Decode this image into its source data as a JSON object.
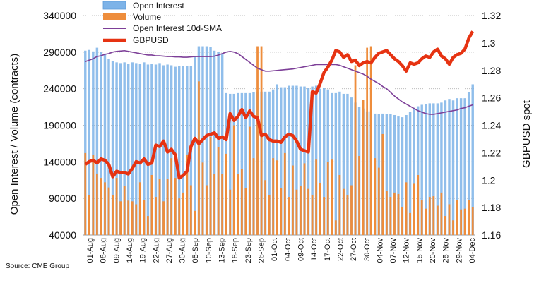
{
  "chart_data": {
    "type": "bar",
    "title": "",
    "ylabel": "Open Interest / Volume (contracts)",
    "y2label": "GBPUSD spot",
    "ylim": [
      40000,
      340000
    ],
    "y2lim": [
      1.16,
      1.32
    ],
    "yticks": [
      "340000",
      "290000",
      "240000",
      "190000",
      "140000",
      "90000",
      "40000"
    ],
    "y2ticks": [
      "1.32",
      "1.3",
      "1.28",
      "1.26",
      "1.24",
      "1.22",
      "1.2",
      "1.18",
      "1.16"
    ],
    "grid": "horizontal dotted",
    "legend_position": "top-left",
    "x_tick_labels": [
      "01-Aug",
      "06-Aug",
      "09-Aug",
      "14-Aug",
      "19-Aug",
      "22-Aug",
      "27-Aug",
      "30-Aug",
      "05-Sep",
      "10-Sep",
      "13-Sep",
      "18-Sep",
      "23-Sep",
      "26-Sep",
      "01-Oct",
      "04-Oct",
      "09-Oct",
      "14-Oct",
      "17-Oct",
      "22-Oct",
      "27-Oct",
      "30-Oct",
      "04-Nov",
      "07-Nov",
      "12-Nov",
      "15-Nov",
      "20-Nov",
      "25-Nov",
      "29-Nov",
      "04-Dec"
    ],
    "series": [
      {
        "name": "Open Interest",
        "kind": "bar",
        "axis": "left",
        "values": [
          292000,
          293000,
          291000,
          296000,
          290000,
          288000,
          281000,
          278000,
          276000,
          275000,
          276000,
          274000,
          276000,
          275000,
          274000,
          276000,
          273000,
          274000,
          273000,
          275000,
          272000,
          273000,
          272000,
          270000,
          271000,
          271000,
          271000,
          271000,
          284000,
          298000,
          298000,
          298000,
          297000,
          292000,
          290000,
          288000,
          234000,
          233000,
          233000,
          234000,
          234000,
          234000,
          234000,
          235000,
          236000,
          236000,
          236000,
          236000,
          239000,
          246000,
          242000,
          242000,
          244000,
          244000,
          244000,
          243000,
          243000,
          241000,
          243000,
          244000,
          240000,
          241000,
          239000,
          234000,
          234000,
          236000,
          233000,
          233000,
          228000,
          221000,
          215000,
          213000,
          209000,
          209000,
          206000,
          205000,
          206000,
          205000,
          205000,
          204000,
          202000,
          201000,
          204000,
          208000,
          214000,
          216000,
          218000,
          219000,
          220000,
          220000,
          220000,
          221000,
          224000,
          226000,
          224000,
          227000,
          227000,
          227000,
          235000,
          246000
        ]
      },
      {
        "name": "Volume",
        "kind": "bar",
        "axis": "left",
        "values": [
          152000,
          95000,
          150000,
          124000,
          118000,
          112000,
          105000,
          95000,
          118000,
          86000,
          107000,
          87000,
          86000,
          82000,
          112000,
          88000,
          66000,
          122000,
          92000,
          117000,
          86000,
          117000,
          145000,
          118000,
          90000,
          98000,
          150000,
          108000,
          73000,
          250000,
          139000,
          108000,
          174000,
          123000,
          160000,
          123000,
          151000,
          102000,
          190000,
          123000,
          130000,
          104000,
          188000,
          145000,
          298000,
          298000,
          115000,
          95000,
          145000,
          142000,
          104000,
          152000,
          92000,
          135000,
          102000,
          107000,
          138000,
          103000,
          95000,
          143000,
          111000,
          92000,
          140000,
          143000,
          60000,
          122000,
          103000,
          95000,
          108000,
          272000,
          148000,
          225000,
          296000,
          298000,
          145000,
          132000,
          178000,
          100000,
          92000,
          98000,
          96000,
          78000,
          112000,
          70000,
          110000,
          122000,
          88000,
          76000,
          92000,
          93000,
          80000,
          98000,
          66000,
          82000,
          60000,
          88000,
          75000,
          76000,
          88000,
          78000
        ]
      },
      {
        "name": "Open Interest 10d-SMA",
        "kind": "line",
        "axis": "left",
        "values": [
          277000,
          279000,
          281000,
          284000,
          285000,
          287000,
          288000,
          290000,
          291000,
          291500,
          292000,
          291000,
          290000,
          289000,
          288000,
          287000,
          286000,
          286000,
          285000,
          285000,
          284500,
          284000,
          284000,
          283500,
          283500,
          283000,
          283000,
          283500,
          284000,
          284000,
          284000,
          284000,
          284000,
          284500,
          286000,
          288000,
          290000,
          291000,
          290000,
          288000,
          284000,
          280000,
          276000,
          272000,
          268000,
          266000,
          264000,
          264000,
          264500,
          265000,
          265500,
          266000,
          266500,
          267000,
          268000,
          269000,
          270000,
          271000,
          272000,
          273000,
          273000,
          273000,
          273000,
          273000,
          273000,
          272000,
          270000,
          268000,
          266000,
          264000,
          262000,
          260000,
          257000,
          253000,
          250000,
          247000,
          243000,
          240000,
          235000,
          230000,
          226000,
          222000,
          219000,
          216000,
          213000,
          210000,
          208000,
          206000,
          205000,
          205000,
          206000,
          207000,
          208000,
          209000,
          210000,
          211000,
          213000,
          214000,
          216000,
          218000
        ]
      },
      {
        "name": "GBPUSD",
        "kind": "line",
        "axis": "right",
        "values": [
          1.2115,
          1.2135,
          1.2145,
          1.2125,
          1.2155,
          1.2145,
          1.2115,
          1.2025,
          1.2065,
          1.2055,
          1.2055,
          1.2045,
          1.2085,
          1.2135,
          1.2125,
          1.2155,
          1.2115,
          1.2125,
          1.2255,
          1.2245,
          1.2285,
          1.2205,
          1.2225,
          1.2185,
          1.2015,
          1.2035,
          1.2065,
          1.2245,
          1.2305,
          1.2265,
          1.2295,
          1.2325,
          1.2335,
          1.2345,
          1.2305,
          1.2315,
          1.2295,
          1.2485,
          1.2435,
          1.2465,
          1.2515,
          1.2455,
          1.2505,
          1.2465,
          1.2455,
          1.2325,
          1.2335,
          1.2295,
          1.2285,
          1.2285,
          1.2275,
          1.2315,
          1.2335,
          1.2325,
          1.2285,
          1.2225,
          1.2215,
          1.2205,
          1.2645,
          1.2635,
          1.2705,
          1.2785,
          1.2825,
          1.2875,
          1.2945,
          1.2935,
          1.2895,
          1.2915,
          1.2865,
          1.2875,
          1.2835,
          1.2855,
          1.2865,
          1.2855,
          1.2895,
          1.2925,
          1.2935,
          1.2945,
          1.2915,
          1.2885,
          1.2865,
          1.2835,
          1.2795,
          1.2855,
          1.2845,
          1.2855,
          1.2885,
          1.2905,
          1.2895,
          1.2935,
          1.2955,
          1.2905,
          1.2885,
          1.2845,
          1.2895,
          1.2915,
          1.2925,
          1.2955,
          1.3035,
          1.3085
        ]
      }
    ],
    "source": "Source: CME Group",
    "colors": {
      "open_interest": "#7db3e8",
      "volume": "#ee8d3c",
      "sma": "#7d3f98",
      "gbpusd": "#e63312"
    }
  }
}
